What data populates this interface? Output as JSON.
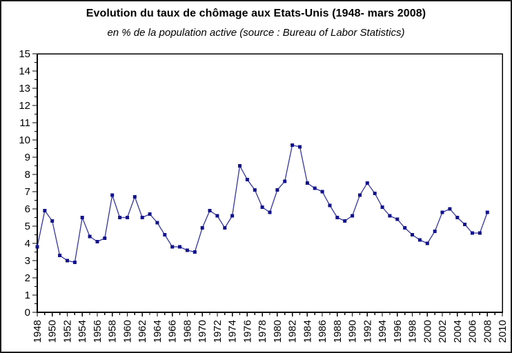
{
  "chart_data": {
    "type": "line",
    "title": "Evolution du taux de chômage aux Etats-Unis (1948- mars 2008)",
    "subtitle": "en % de la population active (source : Bureau of Labor Statistics)",
    "xlabel": "",
    "ylabel": "",
    "x": [
      1948,
      1949,
      1950,
      1951,
      1952,
      1953,
      1954,
      1955,
      1956,
      1957,
      1958,
      1959,
      1960,
      1961,
      1962,
      1963,
      1964,
      1965,
      1966,
      1967,
      1968,
      1969,
      1970,
      1971,
      1972,
      1973,
      1974,
      1975,
      1976,
      1977,
      1978,
      1979,
      1980,
      1981,
      1982,
      1983,
      1984,
      1985,
      1986,
      1987,
      1988,
      1989,
      1990,
      1991,
      1992,
      1993,
      1994,
      1995,
      1996,
      1997,
      1998,
      1999,
      2000,
      2001,
      2002,
      2003,
      2004,
      2005,
      2006,
      2007,
      2008
    ],
    "values": [
      3.8,
      5.9,
      5.3,
      3.3,
      3.0,
      2.9,
      5.5,
      4.4,
      4.1,
      4.3,
      6.8,
      5.5,
      5.5,
      6.7,
      5.5,
      5.7,
      5.2,
      4.5,
      3.8,
      3.8,
      3.6,
      3.5,
      4.9,
      5.9,
      5.6,
      4.9,
      5.6,
      8.5,
      7.7,
      7.1,
      6.1,
      5.8,
      7.1,
      7.6,
      9.7,
      9.6,
      7.5,
      7.2,
      7.0,
      6.2,
      5.5,
      5.3,
      5.6,
      6.8,
      7.5,
      6.9,
      6.1,
      5.6,
      5.4,
      4.9,
      4.5,
      4.2,
      4.0,
      4.7,
      5.8,
      6.0,
      5.5,
      5.1,
      4.6,
      4.6,
      5.8
    ],
    "xlim": [
      1948,
      2010
    ],
    "ylim": [
      0,
      15
    ],
    "y_major_step": 1,
    "y_minor_step": 0.5,
    "x_tick_step": 1,
    "x_label_step": 2,
    "x_tick_labels": [
      1948,
      1950,
      1952,
      1954,
      1956,
      1958,
      1960,
      1962,
      1964,
      1966,
      1968,
      1970,
      1972,
      1974,
      1976,
      1978,
      1980,
      1982,
      1984,
      1986,
      1988,
      1990,
      1992,
      1994,
      1996,
      1998,
      2000,
      2002,
      2004,
      2006,
      2008,
      2010
    ],
    "grid": false,
    "legend": "none",
    "marker": "square",
    "marker_size": 5,
    "line_color": "#3434A0",
    "marker_color": "#12128C",
    "axis_color": "#000000"
  }
}
